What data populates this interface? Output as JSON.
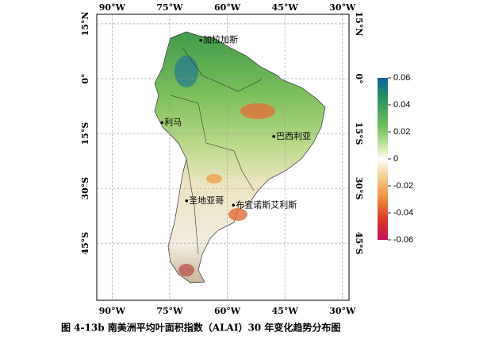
{
  "map": {
    "xlim": [
      -94,
      -28.3
    ],
    "ylim": [
      -60.6,
      17.6
    ],
    "xticks": [
      {
        "value": -90,
        "label": "90°W"
      },
      {
        "value": -75,
        "label": "75°W"
      },
      {
        "value": -60,
        "label": "60°W"
      },
      {
        "value": -45,
        "label": "45°W"
      },
      {
        "value": -30,
        "label": "30°W"
      }
    ],
    "yticks": [
      {
        "value": 15,
        "label": "15°N"
      },
      {
        "value": 0,
        "label": "0°"
      },
      {
        "value": -15,
        "label": "15°S"
      },
      {
        "value": -30,
        "label": "30°S"
      },
      {
        "value": -45,
        "label": "45°S"
      }
    ],
    "cities": [
      "加拉加斯",
      "利马",
      "巴西利亚",
      "圣地亚哥",
      "布宜诺斯艾利斯"
    ]
  },
  "colorbar": {
    "lim": [
      -0.06,
      0.06
    ],
    "ticks": [
      0.06,
      0.04,
      0.02,
      0,
      -0.02,
      -0.04,
      -0.06
    ]
  },
  "caption": "图 4-13b 南美洲平均叶面积指数（ALAI）30 年变化趋势分布图"
}
